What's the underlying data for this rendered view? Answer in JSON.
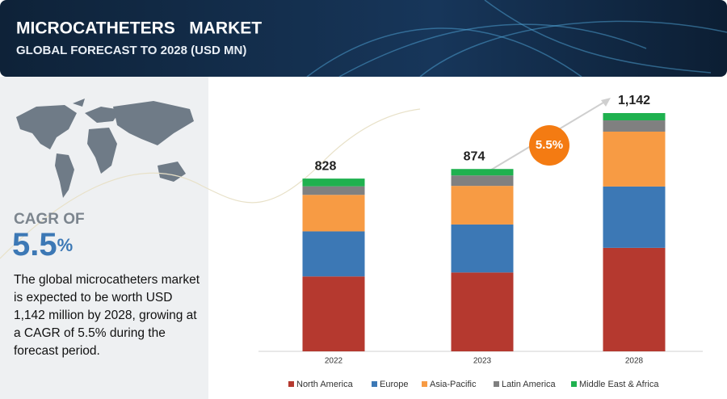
{
  "header": {
    "title": "MICROCATHETERS   MARKET",
    "subtitle": "GLOBAL FORECAST TO 2028 (USD MN)"
  },
  "summary": {
    "cagr_label": "CAGR OF",
    "cagr_number": "5.5",
    "cagr_unit": "%",
    "description": "The global microcatheters market is expected to be worth USD 1,142 million by 2028, growing at a CAGR of 5.5% during the forecast period.",
    "growth_badge": "5.5%"
  },
  "chart_data": {
    "type": "bar",
    "stacked": true,
    "categories": [
      "2022",
      "2023",
      "2028"
    ],
    "series": [
      {
        "name": "North America",
        "color": "#b5392f",
        "values": [
          359,
          378,
          496
        ]
      },
      {
        "name": "Europe",
        "color": "#3c78b5",
        "values": [
          216,
          230,
          294
        ]
      },
      {
        "name": "Asia-Pacific",
        "color": "#f79b44",
        "values": [
          175,
          185,
          263
        ]
      },
      {
        "name": "Latin America",
        "color": "#808080",
        "values": [
          41,
          50,
          54
        ]
      },
      {
        "name": "Middle East & Africa",
        "color": "#1fb14f",
        "values": [
          37,
          31,
          35
        ]
      }
    ],
    "totals": [
      828,
      874,
      1142
    ],
    "total_labels": [
      "828",
      "874",
      "1,142"
    ],
    "ylim": [
      0,
      1200
    ],
    "legend": "bottom"
  }
}
